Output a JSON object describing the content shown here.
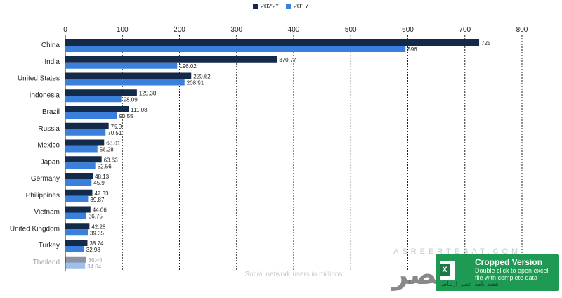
{
  "legend": {
    "item1": "2022*",
    "item2": "2017"
  },
  "colors": {
    "series_2022": "#132a4a",
    "series_2017": "#3a7fdb",
    "grid": "#222222"
  },
  "chart_data": {
    "type": "bar",
    "orientation": "horizontal",
    "categories": [
      "China",
      "India",
      "United States",
      "Indonesia",
      "Brazil",
      "Russia",
      "Mexico",
      "Japan",
      "Germany",
      "Philippines",
      "Vietnam",
      "United Kingdom",
      "Turkey",
      "Thailand"
    ],
    "series": [
      {
        "name": "2022*",
        "values": [
          725,
          370.77,
          220.62,
          125.38,
          111.08,
          75.9,
          68.01,
          63.63,
          48.13,
          47.33,
          44.06,
          42.28,
          38.74,
          36.44
        ],
        "labels": [
          "725",
          "370.77",
          "220.62",
          "125.38",
          "111.08",
          "75.9",
          "68.01",
          "63.63",
          "48.13",
          "47.33",
          "44.06",
          "42.28",
          "38.74",
          "36.44"
        ]
      },
      {
        "name": "2017",
        "values": [
          596,
          196.02,
          208.91,
          98.09,
          90.55,
          70.51,
          56.28,
          52.56,
          45.9,
          39.87,
          36.75,
          39.35,
          32.98,
          34.64
        ],
        "labels": [
          "596",
          "196.02",
          "208.91",
          "98.09",
          "90.55",
          "70.51",
          "56.28",
          "52.56",
          "45.9",
          "39.87",
          "36.75",
          "39.35",
          "32.98",
          "34.64"
        ]
      }
    ],
    "x_ticks": [
      "0",
      "100",
      "200",
      "300",
      "400",
      "500",
      "600",
      "700",
      "800"
    ],
    "xlim": [
      0,
      800
    ],
    "xlabel": "Social network users in millions",
    "grid": true,
    "legend_position": "top-center"
  },
  "watermark": {
    "site": "ASREERTEBAT.COM",
    "logo_text": "عصر",
    "cropped_title": "Cropped Version",
    "cropped_sub": "Double click to open excel file with complete data",
    "persian_text": "هفته نامه عصر ارتباط",
    "excel_icon_letter": "X"
  }
}
